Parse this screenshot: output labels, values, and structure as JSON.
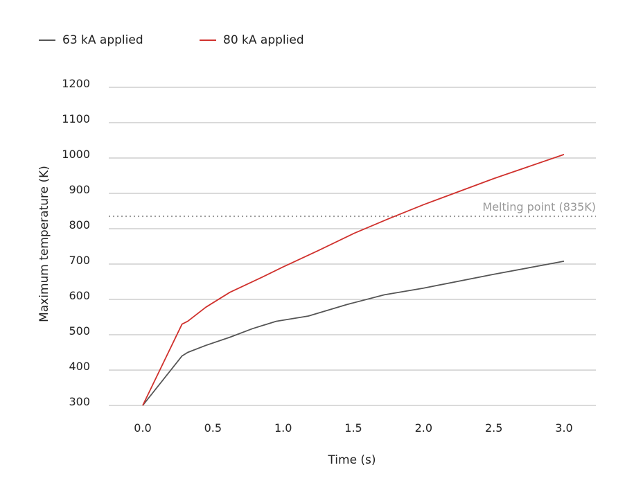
{
  "chart_data": {
    "type": "line",
    "xlabel": "Time (s)",
    "ylabel": "Maximum temperature (K)",
    "xlim": [
      -0.25,
      3.2
    ],
    "ylim": [
      300,
      1200
    ],
    "grid": "horizontal",
    "legend_placement": "top-left",
    "x_ticks": [
      "0.0",
      "0.5",
      "1.0",
      "1.5",
      "2.0",
      "2.5",
      "3.0"
    ],
    "y_ticks": [
      "300",
      "400",
      "500",
      "600",
      "700",
      "800",
      "900",
      "1000",
      "1100",
      "1200"
    ],
    "series": [
      {
        "name": "63 kA applied",
        "color": "#555555",
        "x": [
          0.0,
          0.28,
          0.32,
          0.45,
          0.62,
          0.78,
          0.95,
          1.18,
          1.45,
          1.72,
          2.0,
          2.5,
          3.0
        ],
        "y": [
          300,
          440,
          450,
          470,
          493,
          517,
          538,
          553,
          585,
          613,
          632,
          671,
          708
        ]
      },
      {
        "name": "80 kA applied",
        "color": "#d0312d",
        "x": [
          0.0,
          0.28,
          0.32,
          0.45,
          0.62,
          0.85,
          1.0,
          1.25,
          1.5,
          1.75,
          2.0,
          2.5,
          3.0
        ],
        "y": [
          300,
          530,
          538,
          578,
          620,
          663,
          692,
          738,
          786,
          828,
          868,
          942,
          1010
        ]
      }
    ],
    "annotations": [
      {
        "text": "Melting point (835K)",
        "y": 835,
        "style": "dotted",
        "color": "#999999"
      }
    ]
  }
}
